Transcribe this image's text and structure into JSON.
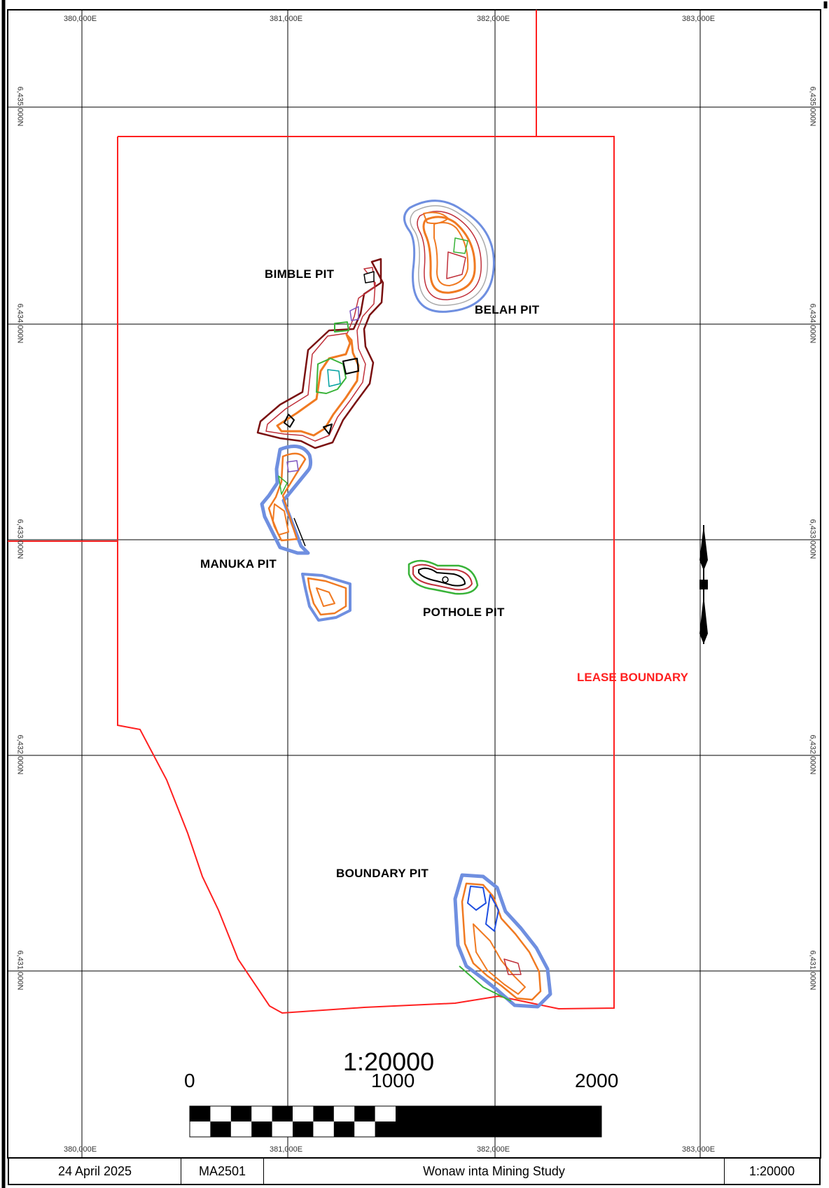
{
  "map": {
    "easting_labels": [
      "380,000E",
      "381,000E",
      "382,000E",
      "383,000E"
    ],
    "northing_labels": [
      "6,435,000N",
      "6,434,000N",
      "6,433,000N",
      "6,432,000N",
      "6,431,000N"
    ],
    "pits": {
      "bimble": "BIMBLE PIT",
      "belah": "BELAH PIT",
      "manuka": "MANUKA PIT",
      "pothole": "POTHOLE PIT",
      "boundary": "BOUNDARY PIT"
    },
    "lease_label": "LEASE BOUNDARY",
    "colors": {
      "lease": "#ff2020",
      "grid": "#000000",
      "pit_orange": "#f07a22",
      "pit_blue": "#6f8fe0",
      "pit_red": "#c0303a",
      "pit_green": "#38b338"
    },
    "icon": "north-arrow-icon"
  },
  "scale_bar": {
    "ratio": "1:20000",
    "ticks": [
      "0",
      "1000",
      "2000"
    ]
  },
  "footer": {
    "date": "24 April 2025",
    "code": "MA2501",
    "title": "Wonaw inta Mining Study",
    "scale": "1:20000"
  }
}
